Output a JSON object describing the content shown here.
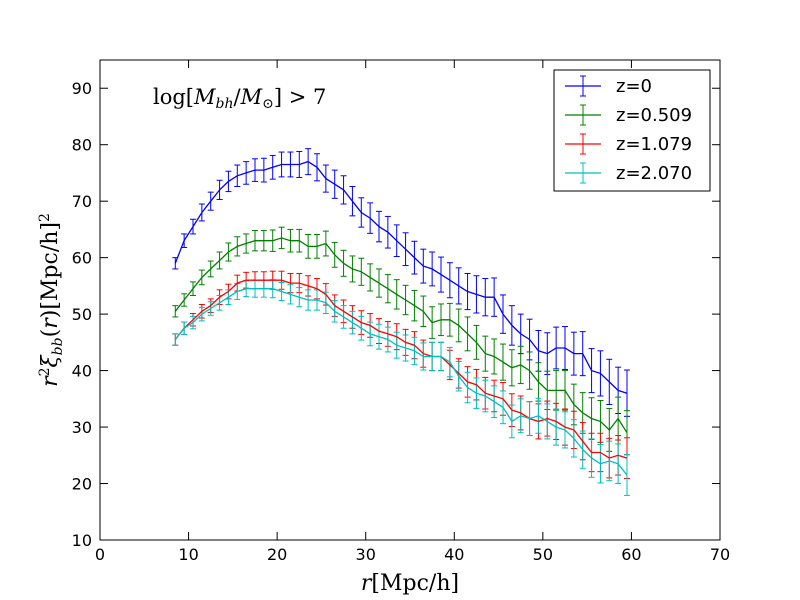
{
  "chart_data": {
    "type": "line",
    "xlabel": "r[Mpc/h]",
    "ylabel": "r²ξbb(r)[Mpc/h]²",
    "annotation": "log[Mbh/M⊙] > 7",
    "xlim": [
      0,
      70
    ],
    "ylim": [
      10,
      95
    ],
    "xticks": [
      0,
      10,
      20,
      30,
      40,
      50,
      60,
      70
    ],
    "yticks": [
      10,
      20,
      30,
      40,
      50,
      60,
      70,
      80,
      90
    ],
    "legend_position": "top-right",
    "x": [
      8.5,
      9.5,
      10.5,
      11.5,
      12.5,
      13.5,
      14.5,
      15.5,
      16.5,
      17.5,
      18.5,
      19.5,
      20.5,
      21.5,
      22.5,
      23.5,
      24.5,
      25.5,
      26.5,
      27.5,
      28.5,
      29.5,
      30.5,
      31.5,
      32.5,
      33.5,
      34.5,
      35.5,
      36.5,
      37.5,
      38.5,
      39.5,
      40.5,
      41.5,
      42.5,
      43.5,
      44.5,
      45.5,
      46.5,
      47.5,
      48.5,
      49.5,
      50.5,
      51.5,
      52.5,
      53.5,
      54.5,
      55.5,
      56.5,
      57.5,
      58.5,
      59.5
    ],
    "series": [
      {
        "name": "z=0",
        "color": "#0000ff",
        "values": [
          59.0,
          63.0,
          65.5,
          68.0,
          70.0,
          72.0,
          73.5,
          74.5,
          75.0,
          75.5,
          75.5,
          76.0,
          76.5,
          76.5,
          76.5,
          77.0,
          76.0,
          74.0,
          73.0,
          72.0,
          70.0,
          68.0,
          67.0,
          65.5,
          64.5,
          63.0,
          61.5,
          60.0,
          58.5,
          58.0,
          57.0,
          56.0,
          55.0,
          54.0,
          53.5,
          53.0,
          53.0,
          50.0,
          48.0,
          46.5,
          45.5,
          43.5,
          43.0,
          44.0,
          44.0,
          43.0,
          43.0,
          40.0,
          39.5,
          38.0,
          36.5,
          36.0
        ],
        "errors": [
          1.0,
          1.2,
          1.3,
          1.5,
          1.6,
          1.7,
          1.8,
          1.9,
          2.0,
          2.0,
          2.1,
          2.1,
          2.2,
          2.2,
          2.3,
          2.3,
          2.4,
          2.4,
          2.5,
          2.5,
          2.6,
          2.6,
          2.7,
          2.7,
          2.8,
          2.8,
          2.9,
          2.9,
          3.0,
          3.0,
          3.1,
          3.1,
          3.2,
          3.2,
          3.3,
          3.3,
          3.4,
          3.4,
          3.5,
          3.5,
          3.6,
          3.6,
          3.7,
          3.7,
          3.8,
          3.8,
          3.9,
          3.9,
          4.0,
          4.0,
          4.1,
          4.1
        ]
      },
      {
        "name": "z=0.509",
        "color": "#008000",
        "values": [
          50.5,
          52.5,
          54.5,
          56.5,
          58.0,
          59.5,
          61.0,
          62.0,
          62.5,
          63.0,
          63.0,
          63.0,
          63.5,
          63.0,
          63.0,
          62.0,
          62.0,
          62.5,
          60.5,
          59.0,
          58.0,
          57.5,
          56.5,
          55.5,
          54.5,
          53.5,
          52.5,
          51.5,
          50.5,
          48.5,
          49.0,
          49.0,
          48.0,
          46.5,
          45.0,
          43.0,
          42.5,
          41.5,
          40.5,
          41.0,
          40.0,
          38.0,
          36.5,
          36.5,
          36.5,
          34.0,
          32.5,
          31.5,
          31.0,
          29.5,
          31.5,
          29.0
        ],
        "errors": [
          1.0,
          1.1,
          1.2,
          1.3,
          1.4,
          1.5,
          1.6,
          1.7,
          1.7,
          1.8,
          1.8,
          1.9,
          1.9,
          2.0,
          2.0,
          2.1,
          2.1,
          2.2,
          2.2,
          2.3,
          2.3,
          2.4,
          2.4,
          2.5,
          2.5,
          2.6,
          2.6,
          2.7,
          2.7,
          2.8,
          2.8,
          2.9,
          2.9,
          3.0,
          3.0,
          3.1,
          3.1,
          3.2,
          3.2,
          3.3,
          3.3,
          3.4,
          3.4,
          3.5,
          3.5,
          3.6,
          3.6,
          3.7,
          3.7,
          3.8,
          3.8,
          3.9
        ]
      },
      {
        "name": "z=1.079",
        "color": "#ff0000",
        "values": [
          45.5,
          47.5,
          49.0,
          50.5,
          51.5,
          53.0,
          54.0,
          55.5,
          56.0,
          56.0,
          56.0,
          56.0,
          56.0,
          55.5,
          55.5,
          55.0,
          54.5,
          53.5,
          51.5,
          50.5,
          49.5,
          48.5,
          48.0,
          47.0,
          46.5,
          46.0,
          45.0,
          44.5,
          43.0,
          42.5,
          42.5,
          41.0,
          39.5,
          38.0,
          37.5,
          36.0,
          35.5,
          35.0,
          33.0,
          32.5,
          31.5,
          31.0,
          31.5,
          31.0,
          30.0,
          29.5,
          27.5,
          25.5,
          25.5,
          24.5,
          25.0,
          24.5
        ],
        "errors": [
          1.0,
          1.1,
          1.1,
          1.2,
          1.2,
          1.3,
          1.3,
          1.4,
          1.4,
          1.5,
          1.5,
          1.6,
          1.6,
          1.7,
          1.7,
          1.8,
          1.8,
          1.9,
          1.9,
          2.0,
          2.0,
          2.1,
          2.1,
          2.2,
          2.2,
          2.3,
          2.3,
          2.4,
          2.4,
          2.5,
          2.5,
          2.6,
          2.6,
          2.7,
          2.7,
          2.8,
          2.8,
          2.9,
          2.9,
          3.0,
          3.0,
          3.1,
          3.1,
          3.2,
          3.2,
          3.3,
          3.3,
          3.4,
          3.4,
          3.5,
          3.5,
          3.6
        ]
      },
      {
        "name": "z=2.070",
        "color": "#00bfbf",
        "values": [
          45.5,
          47.5,
          48.5,
          50.0,
          51.0,
          52.0,
          53.0,
          54.0,
          54.5,
          54.5,
          54.5,
          54.5,
          54.0,
          53.5,
          53.0,
          52.5,
          52.5,
          52.0,
          50.5,
          49.5,
          48.5,
          47.5,
          46.5,
          46.0,
          45.5,
          44.5,
          44.0,
          43.5,
          42.5,
          42.5,
          42.5,
          41.5,
          39.0,
          37.0,
          36.0,
          35.5,
          34.5,
          33.5,
          31.0,
          32.0,
          31.5,
          32.0,
          31.0,
          30.0,
          29.5,
          28.0,
          26.0,
          24.5,
          23.5,
          24.0,
          23.5,
          21.5
        ],
        "errors": [
          1.0,
          1.1,
          1.1,
          1.2,
          1.2,
          1.3,
          1.3,
          1.4,
          1.4,
          1.5,
          1.5,
          1.6,
          1.6,
          1.7,
          1.7,
          1.8,
          1.8,
          1.9,
          1.9,
          2.0,
          2.0,
          2.1,
          2.1,
          2.2,
          2.2,
          2.3,
          2.3,
          2.4,
          2.4,
          2.5,
          2.5,
          2.6,
          2.6,
          2.7,
          2.7,
          2.8,
          2.8,
          2.9,
          2.9,
          3.0,
          3.0,
          3.1,
          3.1,
          3.2,
          3.2,
          3.3,
          3.3,
          3.4,
          3.4,
          3.5,
          3.5,
          3.6
        ]
      }
    ]
  }
}
